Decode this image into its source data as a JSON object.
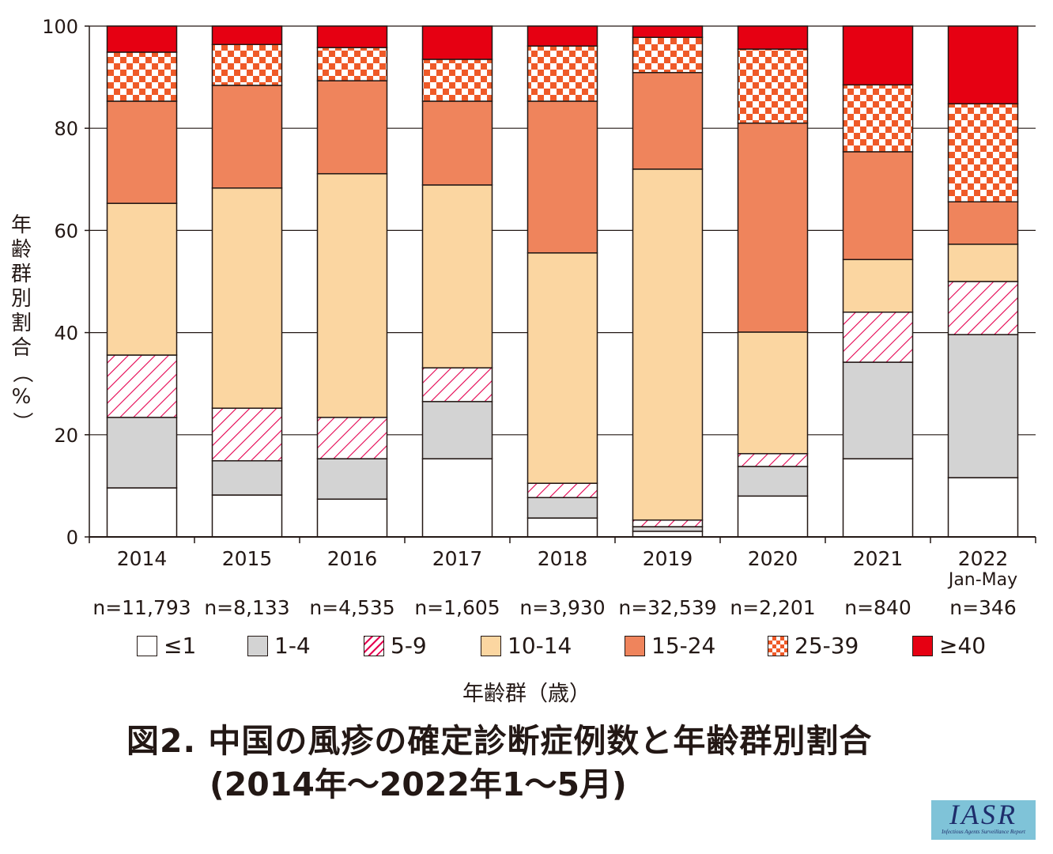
{
  "chart_data": {
    "type": "bar",
    "stacked": true,
    "title": "図2. 中国の風疹の確定診断症例数と年齢群別割合",
    "subtitle": "(2014年～2022年1～5月)",
    "xlabel": "年齢群（歳）",
    "ylabel": "年齢群別割合（%）",
    "ylim": [
      0,
      100
    ],
    "yticks": [
      0,
      20,
      40,
      60,
      80,
      100
    ],
    "grid": true,
    "categories": [
      "2014",
      "2015",
      "2016",
      "2017",
      "2018",
      "2019",
      "2020",
      "2021",
      "2022"
    ],
    "category_sublabels": [
      "",
      "",
      "",
      "",
      "",
      "",
      "",
      "",
      "Jan-May"
    ],
    "n_labels": [
      "n=11,793",
      "n=8,133",
      "n=4,535",
      "n=1,605",
      "n=3,930",
      "n=32,539",
      "n=2,201",
      "n=840",
      "n=346"
    ],
    "series": [
      {
        "name": "≤1",
        "color": "#ffffff",
        "pattern": "solid",
        "values": [
          9.6,
          8.2,
          7.4,
          15.3,
          3.7,
          1.1,
          8.0,
          15.3,
          11.6
        ]
      },
      {
        "name": "1-4",
        "color": "#d3d3d3",
        "pattern": "solid",
        "values": [
          13.8,
          6.7,
          7.9,
          11.2,
          4.0,
          0.9,
          5.8,
          18.9,
          28.0
        ]
      },
      {
        "name": "5-9",
        "color": "#e5004f",
        "pattern": "hatch",
        "values": [
          12.2,
          10.3,
          8.1,
          6.6,
          2.8,
          1.3,
          2.5,
          9.8,
          10.4
        ]
      },
      {
        "name": "10-14",
        "color": "#fbd6a1",
        "pattern": "solid",
        "values": [
          29.7,
          43.1,
          47.7,
          35.8,
          45.1,
          68.7,
          23.8,
          10.3,
          7.3
        ]
      },
      {
        "name": "15-24",
        "color": "#ef845c",
        "pattern": "solid",
        "values": [
          20.0,
          20.1,
          18.2,
          16.4,
          29.7,
          18.9,
          40.9,
          21.1,
          8.3
        ]
      },
      {
        "name": "25-39",
        "color": "#ef5a28",
        "pattern": "checker",
        "values": [
          9.6,
          8.0,
          6.5,
          8.2,
          10.8,
          6.9,
          14.5,
          13.1,
          19.2
        ]
      },
      {
        "name": "≥40",
        "color": "#e60012",
        "pattern": "solid",
        "values": [
          5.1,
          3.6,
          4.2,
          6.5,
          3.9,
          2.2,
          4.5,
          11.5,
          15.2
        ]
      }
    ],
    "legend_position": "bottom"
  },
  "ylabel_chars": [
    "年",
    "齢",
    "群",
    "別",
    "割",
    "合",
    "（",
    "%",
    "）"
  ],
  "logo": {
    "text": "IASR",
    "subtext": "Infectious Agents Surveillance Report"
  }
}
